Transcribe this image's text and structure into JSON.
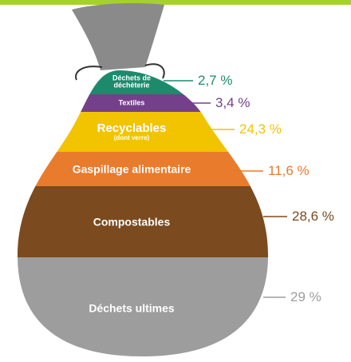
{
  "chart_data": {
    "type": "bag",
    "categories": [
      "Déchets de déchèterie",
      "Textiles",
      "Recyclables",
      "Gaspillage alimentaire",
      "Compostables",
      "Déchets ultimes"
    ],
    "category_notes": [
      null,
      null,
      "(dont verre)",
      null,
      null,
      null
    ],
    "values": [
      2.7,
      3.4,
      24.3,
      11.6,
      28.6,
      29
    ],
    "value_labels": [
      "2,7 %",
      "3,4 %",
      "24,3 %",
      "11,6 %",
      "28,6 %",
      "29 %"
    ],
    "colors": [
      "#1d8a6c",
      "#74408c",
      "#f2c400",
      "#e97b2c",
      "#7b4a1e",
      "#9d9d9d"
    ]
  }
}
